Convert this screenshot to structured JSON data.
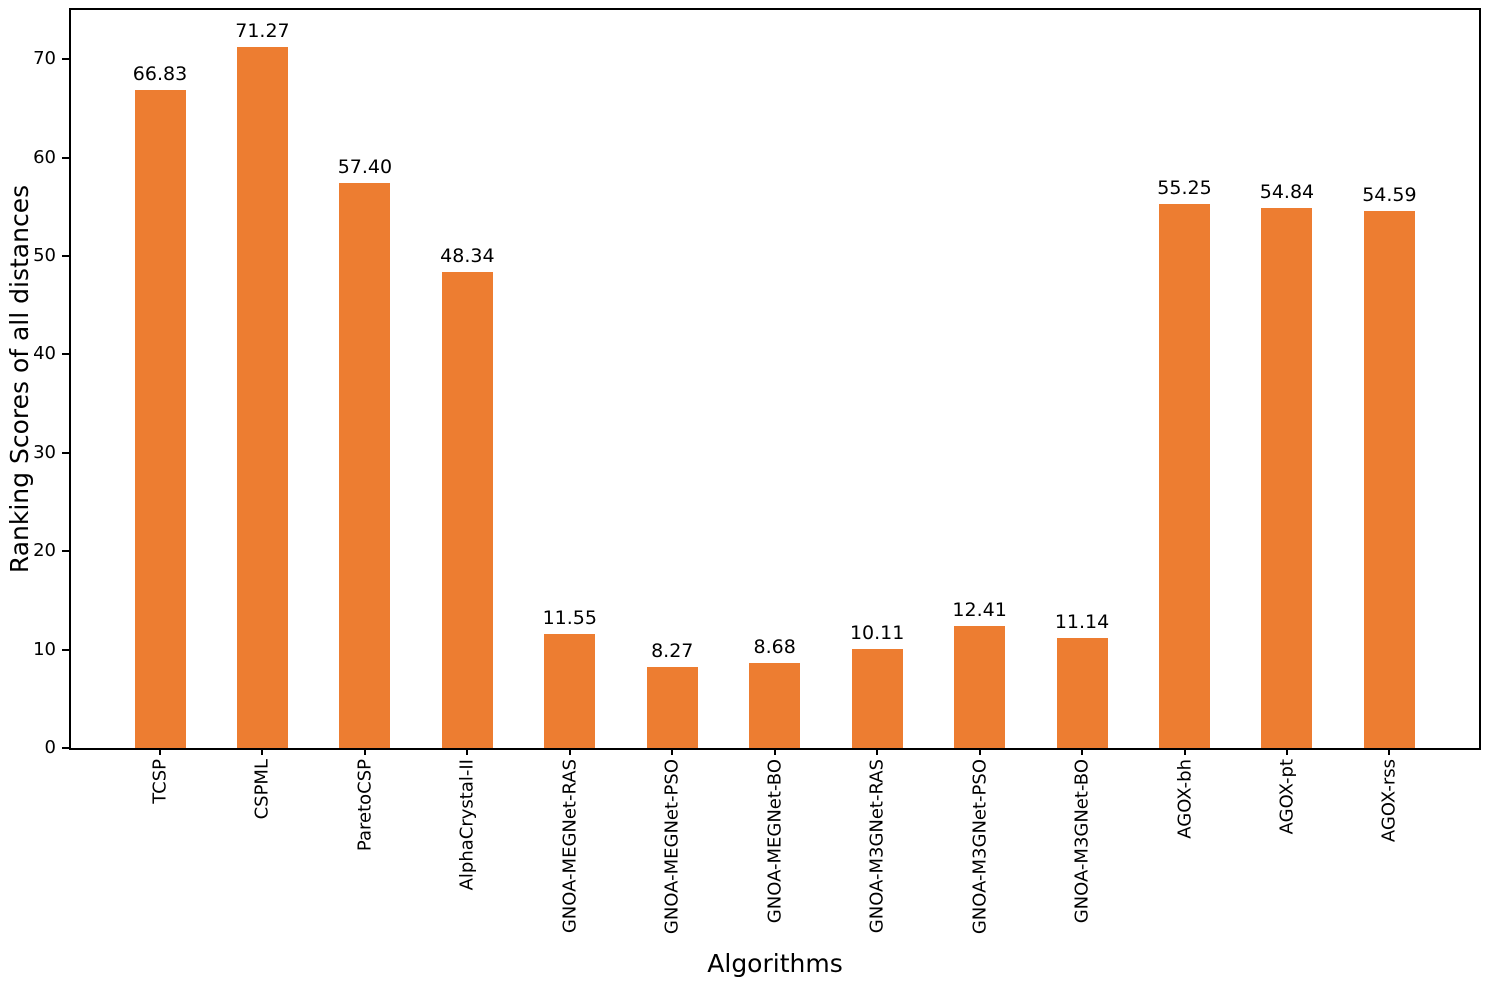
{
  "figure": {
    "background_color": "#ffffff",
    "bar_color": "#ed7d31",
    "axis_color": "#000000",
    "text_color": "#000000"
  },
  "chart_data": {
    "type": "bar",
    "title": "",
    "xlabel": "Algorithms",
    "ylabel": "Ranking Scores of all distances",
    "categories": [
      "TCSP",
      "CSPML",
      "ParetoCSP",
      "AlphaCrystal-II",
      "GNOA-MEGNet-RAS",
      "GNOA-MEGNet-PSO",
      "GNOA-MEGNet-BO",
      "GNOA-M3GNet-RAS",
      "GNOA-M3GNet-PSO",
      "GNOA-M3GNet-BO",
      "AGOX-bh",
      "AGOX-pt",
      "AGOX-rss"
    ],
    "values": [
      66.83,
      71.27,
      57.4,
      48.34,
      11.55,
      8.27,
      8.68,
      10.11,
      12.41,
      11.14,
      55.25,
      54.84,
      54.59
    ],
    "bar_labels": [
      "66.83",
      "71.27",
      "57.40",
      "48.34",
      "11.55",
      "8.27",
      "8.68",
      "10.11",
      "12.41",
      "11.14",
      "55.25",
      "54.84",
      "54.59"
    ],
    "yticks": [
      "0",
      "10",
      "20",
      "30",
      "40",
      "50",
      "60",
      "70"
    ],
    "ytick_values": [
      0,
      10,
      20,
      30,
      40,
      50,
      60,
      70
    ],
    "ylim": [
      0,
      75
    ],
    "grid": false,
    "legend": null,
    "xtick_rotation_deg": 90
  }
}
